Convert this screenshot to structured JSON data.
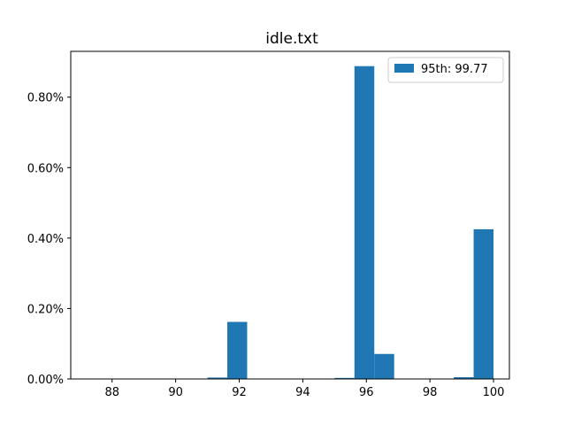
{
  "chart_data": {
    "type": "bar",
    "title": "idle.txt",
    "xlabel": "",
    "ylabel": "",
    "xlim": [
      86.7,
      100.5
    ],
    "ylim": [
      0,
      0.93
    ],
    "x_ticks": [
      88,
      90,
      92,
      94,
      96,
      98,
      100
    ],
    "y_ticks": [
      0,
      0.2,
      0.4,
      0.6,
      0.8
    ],
    "y_tick_labels": [
      "0.00%",
      "0.20%",
      "0.40%",
      "0.60%",
      "0.80%"
    ],
    "bin_width": 0.625,
    "legend": {
      "position": "top-right",
      "label": "95th: 99.77",
      "color": "#1f77b4"
    },
    "bars": [
      {
        "x0": 91.0,
        "value": 0.004
      },
      {
        "x0": 91.625,
        "value": 0.162
      },
      {
        "x0": 95.0,
        "value": 0.003
      },
      {
        "x0": 95.625,
        "value": 0.888
      },
      {
        "x0": 96.25,
        "value": 0.071
      },
      {
        "x0": 98.75,
        "value": 0.005
      },
      {
        "x0": 99.375,
        "value": 0.425
      }
    ]
  }
}
